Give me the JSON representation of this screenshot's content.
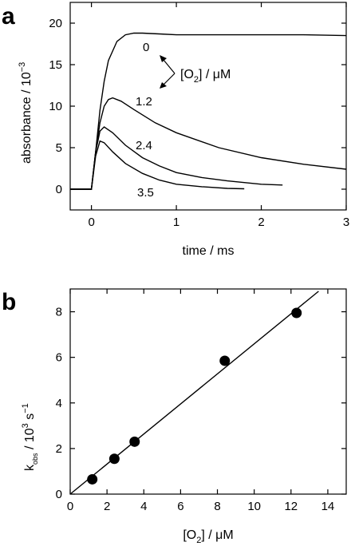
{
  "chart_data": [
    {
      "panel": "a",
      "type": "line",
      "xlabel": "time / ms",
      "ylabel": "absorbance / 10",
      "ylabel_superscript": "−3",
      "xlim": [
        -0.25,
        3
      ],
      "ylim": [
        -2.5,
        22.5
      ],
      "xticks": [
        0,
        1,
        2,
        3
      ],
      "yticks": [
        0,
        5,
        10,
        15,
        20
      ],
      "annotation": {
        "text": "[O",
        "sub": "2",
        "rest": "] / μM"
      },
      "series": [
        {
          "name": "0",
          "x": [
            -0.25,
            0,
            0.05,
            0.1,
            0.15,
            0.2,
            0.3,
            0.4,
            0.5,
            0.6,
            0.8,
            1.0,
            1.5,
            2.0,
            2.5,
            3.0
          ],
          "y": [
            0,
            0,
            4.5,
            9.5,
            13.0,
            15.5,
            17.8,
            18.6,
            18.8,
            18.8,
            18.7,
            18.6,
            18.6,
            18.6,
            18.6,
            18.5
          ]
        },
        {
          "name": "1.2",
          "x": [
            -0.25,
            0,
            0.05,
            0.1,
            0.15,
            0.2,
            0.25,
            0.35,
            0.5,
            0.75,
            1.0,
            1.5,
            2.0,
            2.5,
            3.0
          ],
          "y": [
            0,
            0,
            4.5,
            8.0,
            10.0,
            10.8,
            11.0,
            10.6,
            9.6,
            8.0,
            6.8,
            5.0,
            3.8,
            3.0,
            2.4
          ]
        },
        {
          "name": "2.4",
          "x": [
            -0.25,
            0,
            0.05,
            0.1,
            0.15,
            0.25,
            0.4,
            0.6,
            0.8,
            1.0,
            1.3,
            1.6,
            2.0,
            2.25
          ],
          "y": [
            0,
            0,
            4.5,
            7.0,
            7.5,
            6.8,
            5.3,
            3.8,
            2.8,
            2.0,
            1.4,
            1.0,
            0.6,
            0.5
          ]
        },
        {
          "name": "3.5",
          "x": [
            -0.25,
            0,
            0.05,
            0.1,
            0.15,
            0.25,
            0.4,
            0.6,
            0.8,
            1.0,
            1.3,
            1.6,
            1.8
          ],
          "y": [
            0,
            0,
            4.0,
            5.8,
            5.6,
            4.5,
            3.1,
            1.9,
            1.1,
            0.6,
            0.3,
            0.1,
            0.05
          ]
        }
      ]
    },
    {
      "panel": "b",
      "type": "scatter",
      "xlabel": "[O",
      "xlabel_sub": "2",
      "xlabel_rest": "] / μM",
      "ylabel": "k",
      "ylabel_sub": "obs",
      "ylabel_mid": " /  10",
      "ylabel_sup1": "3",
      "ylabel_mid2": " s",
      "ylabel_sup2": "−1",
      "xlim": [
        0,
        15
      ],
      "ylim": [
        0,
        9
      ],
      "xticks": [
        0,
        2,
        4,
        6,
        8,
        10,
        12,
        14
      ],
      "yticks": [
        0,
        2,
        4,
        6,
        8
      ],
      "points": {
        "x": [
          1.2,
          2.4,
          3.5,
          8.4,
          12.3
        ],
        "y": [
          0.65,
          1.55,
          2.3,
          5.85,
          7.95
        ]
      },
      "fit_line": {
        "x": [
          0,
          13.5
        ],
        "y": [
          0,
          8.9
        ]
      }
    }
  ]
}
